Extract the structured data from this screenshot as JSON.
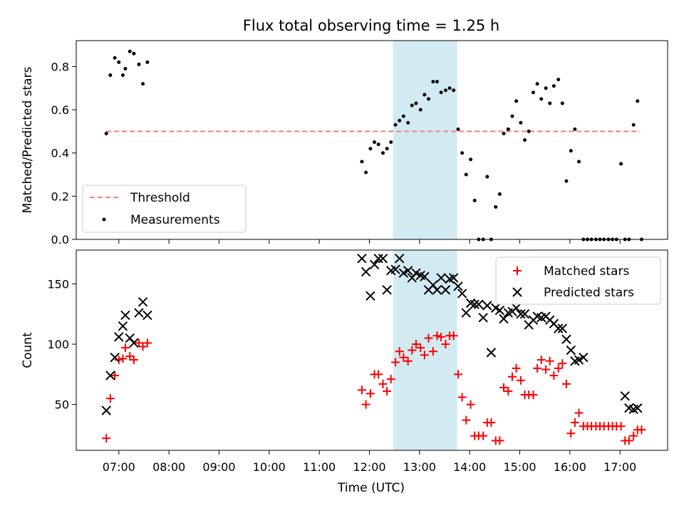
{
  "chart_data": {
    "type": "scatter",
    "title": "Flux total observing time = 1.25 h",
    "xlabel": "Time (UTC)",
    "x_ticks": [
      "07:00",
      "08:00",
      "09:00",
      "10:00",
      "11:00",
      "12:00",
      "13:00",
      "14:00",
      "15:00",
      "16:00",
      "17:00"
    ],
    "x_tick_hours": [
      7,
      8,
      9,
      10,
      11,
      12,
      13,
      14,
      15,
      16,
      17
    ],
    "xlim_hours": [
      6.15,
      17.95
    ],
    "highlight_span_hours": [
      12.47,
      13.75
    ],
    "colors": {
      "threshold": "#f08080",
      "measurements": "#000000",
      "matched": "#ff0000",
      "predicted": "#000000",
      "highlight": "#add8e6"
    },
    "panels": [
      {
        "ylabel": "Matched/Predicted stars",
        "ylim": [
          0,
          0.92
        ],
        "y_ticks": [
          0.0,
          0.2,
          0.4,
          0.6,
          0.8
        ],
        "y_tick_labels": [
          "0.0",
          "0.2",
          "0.4",
          "0.6",
          "0.8"
        ],
        "legend_position": "lower-left",
        "series": [
          {
            "name": "Threshold",
            "style": "dashed-line",
            "x": [
              6.75,
              17.4
            ],
            "y": [
              0.5,
              0.5
            ]
          },
          {
            "name": "Measurements",
            "style": "dot",
            "x": [
              6.75,
              6.83,
              6.92,
              7.0,
              7.08,
              7.13,
              7.22,
              7.3,
              7.4,
              7.48,
              7.57,
              11.85,
              11.93,
              12.02,
              12.1,
              12.18,
              12.27,
              12.35,
              12.43,
              12.52,
              12.6,
              12.68,
              12.77,
              12.85,
              12.93,
              13.02,
              13.1,
              13.18,
              13.27,
              13.35,
              13.43,
              13.52,
              13.6,
              13.68,
              13.77,
              13.85,
              13.93,
              14.02,
              14.1,
              14.18,
              14.27,
              14.35,
              14.43,
              14.52,
              14.6,
              14.68,
              14.77,
              14.85,
              14.93,
              15.02,
              15.1,
              15.18,
              15.27,
              15.35,
              15.43,
              15.52,
              15.6,
              15.68,
              15.77,
              15.85,
              15.93,
              16.02,
              16.1,
              16.18,
              16.27,
              16.35,
              16.43,
              16.52,
              16.6,
              16.68,
              16.77,
              16.85,
              16.93,
              17.02,
              17.1,
              17.18,
              17.27,
              17.35,
              17.43
            ],
            "y": [
              0.49,
              0.76,
              0.84,
              0.82,
              0.76,
              0.79,
              0.87,
              0.86,
              0.81,
              0.72,
              0.82,
              0.36,
              0.31,
              0.42,
              0.45,
              0.44,
              0.4,
              0.42,
              0.45,
              0.53,
              0.55,
              0.57,
              0.54,
              0.62,
              0.63,
              0.6,
              0.67,
              0.65,
              0.73,
              0.73,
              0.68,
              0.69,
              0.7,
              0.69,
              0.51,
              0.4,
              0.3,
              0.37,
              0.18,
              0.0,
              0.0,
              0.29,
              0.0,
              0.15,
              0.21,
              0.49,
              0.51,
              0.57,
              0.64,
              0.54,
              0.46,
              0.5,
              0.68,
              0.72,
              0.65,
              0.7,
              0.63,
              0.71,
              0.74,
              0.63,
              0.27,
              0.41,
              0.51,
              0.36,
              0.0,
              0.0,
              0.0,
              0.0,
              0.0,
              0.0,
              0.0,
              0.0,
              0.0,
              0.35,
              0.0,
              0.0,
              0.53,
              0.64,
              0.0
            ]
          }
        ]
      },
      {
        "ylabel": "Count",
        "ylim": [
          12,
          178
        ],
        "y_ticks": [
          50,
          100,
          150
        ],
        "y_tick_labels": [
          "50",
          "100",
          "150"
        ],
        "legend_position": "upper-right",
        "series": [
          {
            "name": "Matched stars",
            "style": "plus",
            "x": [
              6.75,
              6.83,
              6.92,
              7.0,
              7.08,
              7.13,
              7.22,
              7.3,
              7.4,
              7.48,
              7.57,
              11.85,
              11.93,
              12.02,
              12.1,
              12.18,
              12.27,
              12.35,
              12.43,
              12.52,
              12.6,
              12.68,
              12.77,
              12.85,
              12.93,
              13.02,
              13.1,
              13.18,
              13.27,
              13.35,
              13.43,
              13.52,
              13.6,
              13.68,
              13.77,
              13.85,
              13.93,
              14.02,
              14.1,
              14.18,
              14.27,
              14.35,
              14.43,
              14.52,
              14.6,
              14.68,
              14.77,
              14.85,
              14.93,
              15.02,
              15.1,
              15.18,
              15.27,
              15.35,
              15.43,
              15.52,
              15.6,
              15.68,
              15.77,
              15.85,
              15.93,
              16.02,
              16.1,
              16.18,
              16.27,
              16.35,
              16.43,
              16.52,
              16.6,
              16.68,
              16.77,
              16.85,
              16.93,
              17.02,
              17.1,
              17.18,
              17.27,
              17.35,
              17.43
            ],
            "y": [
              22,
              55,
              74,
              87,
              88,
              97,
              90,
              87,
              101,
              98,
              101,
              62,
              50,
              59,
              75,
              75,
              67,
              61,
              71,
              85,
              94,
              89,
              86,
              95,
              100,
              97,
              91,
              105,
              94,
              107,
              106,
              100,
              107,
              107,
              75,
              56,
              37,
              50,
              24,
              24,
              24,
              35,
              35,
              20,
              20,
              64,
              61,
              73,
              80,
              70,
              58,
              58,
              58,
              80,
              87,
              79,
              86,
              74,
              80,
              84,
              67,
              26,
              35,
              43,
              32,
              32,
              32,
              32,
              32,
              32,
              32,
              32,
              32,
              32,
              20,
              20,
              24,
              29,
              29
            ]
          },
          {
            "name": "Predicted stars",
            "style": "x",
            "x": [
              6.75,
              6.83,
              6.92,
              7.0,
              7.08,
              7.13,
              7.22,
              7.3,
              7.4,
              7.48,
              7.57,
              11.85,
              11.93,
              12.02,
              12.1,
              12.18,
              12.27,
              12.35,
              12.43,
              12.52,
              12.6,
              12.68,
              12.77,
              12.85,
              12.93,
              13.02,
              13.1,
              13.18,
              13.27,
              13.35,
              13.43,
              13.52,
              13.6,
              13.68,
              13.77,
              13.85,
              13.93,
              14.02,
              14.1,
              14.18,
              14.27,
              14.35,
              14.43,
              14.52,
              14.6,
              14.68,
              14.77,
              14.85,
              14.93,
              15.02,
              15.1,
              15.18,
              15.27,
              15.35,
              15.43,
              15.52,
              15.6,
              15.68,
              15.77,
              15.85,
              15.93,
              16.02,
              16.1,
              16.18,
              16.27,
              17.1,
              17.18,
              17.27,
              17.35
            ],
            "y": [
              45,
              74,
              89,
              106,
              115,
              124,
              105,
              101,
              126,
              135,
              124,
              171,
              160,
              140,
              166,
              171,
              171,
              145,
              161,
              162,
              171,
              159,
              161,
              155,
              159,
              157,
              156,
              145,
              149,
              145,
              155,
              145,
              154,
              155,
              148,
              142,
              126,
              134,
              133,
              133,
              122,
              132,
              93,
              130,
              128,
              121,
              126,
              127,
              130,
              125,
              125,
              116,
              120,
              123,
              122,
              123,
              120,
              117,
              113,
              113,
              104,
              95,
              86,
              87,
              89,
              57,
              47,
              46,
              47
            ]
          }
        ]
      }
    ]
  }
}
